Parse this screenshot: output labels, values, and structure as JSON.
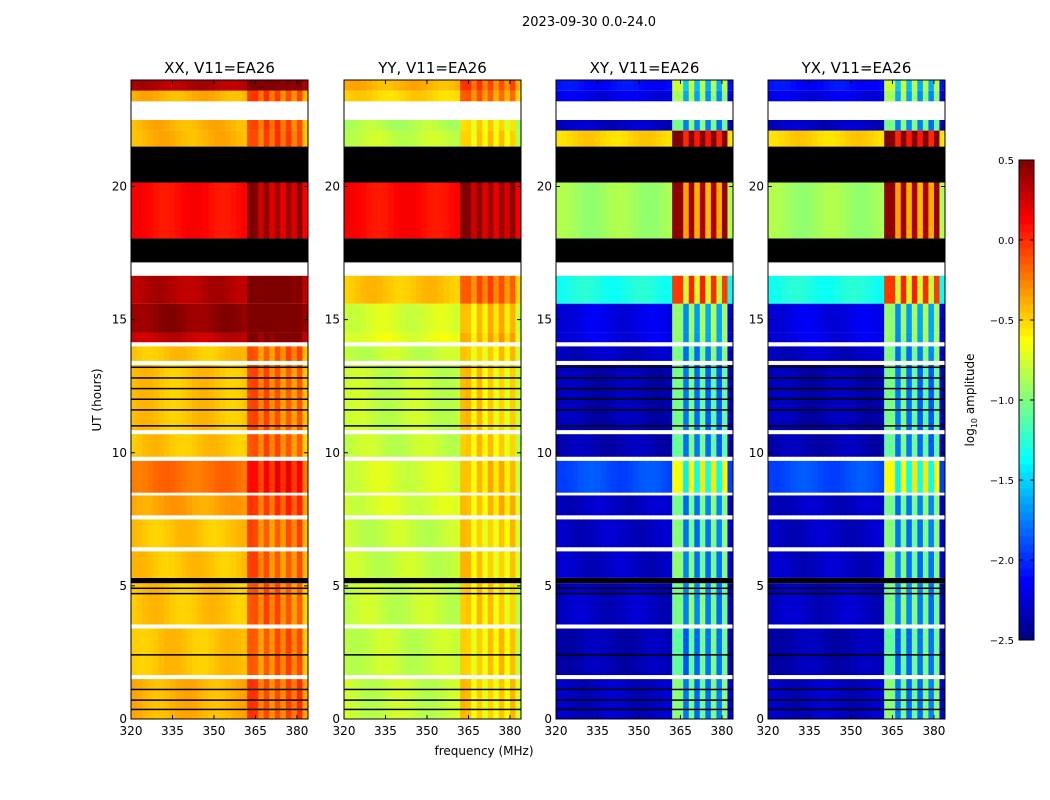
{
  "chart_data": {
    "type": "heatmap",
    "suptitle": "2023-09-30 0.0-24.0",
    "xlabel": "frequency (MHz)",
    "ylabel": "UT (hours)",
    "xlim": [
      320,
      384
    ],
    "ylim": [
      0,
      24
    ],
    "xticks": [
      320,
      335,
      350,
      365,
      380
    ],
    "yticks": [
      0,
      5,
      10,
      15,
      20
    ],
    "panels": [
      {
        "key": "XX",
        "title": "XX, V11=EA26"
      },
      {
        "key": "YY",
        "title": "YY, V11=EA26"
      },
      {
        "key": "XY",
        "title": "XY, V11=EA26"
      },
      {
        "key": "YX",
        "title": "YX, V11=EA26"
      }
    ],
    "colorbar": {
      "label": "log10 amplitude",
      "label_main": "log",
      "label_sub": "10",
      "label_rest": " amplitude",
      "colormap": "jet",
      "range": [
        -2.5,
        0.5
      ],
      "ticks": [
        0.5,
        0.0,
        -0.5,
        -1.0,
        -1.5,
        -2.0,
        -2.5
      ],
      "tick_labels": [
        "0.5",
        "0.0",
        "−0.5",
        "−1.0",
        "−1.5",
        "−2.0",
        "−2.5"
      ]
    },
    "band_enhancement": {
      "range_mhz": [
        363,
        381
      ],
      "gap_channels_mhz": [
        366.5,
        370.5,
        374.5,
        378.5
      ],
      "boost": {
        "XX": 0.35,
        "YY": 0.35,
        "XY": 1.3,
        "YX": 1.3
      }
    },
    "segments": [
      {
        "t0": 0.0,
        "t1": 1.5,
        "XX": -0.4,
        "YY": -0.8,
        "XY": -2.3,
        "YX": -2.3
      },
      {
        "t0": 1.5,
        "t1": 1.65,
        "state": "flagged"
      },
      {
        "t0": 1.65,
        "t1": 3.4,
        "XX": -0.45,
        "YY": -0.8,
        "XY": -2.35,
        "YX": -2.35
      },
      {
        "t0": 3.4,
        "t1": 3.55,
        "state": "flagged"
      },
      {
        "t0": 3.55,
        "t1": 5.1,
        "XX": -0.45,
        "YY": -0.8,
        "XY": -2.3,
        "YX": -2.3
      },
      {
        "t0": 5.1,
        "t1": 5.3,
        "state": "zero"
      },
      {
        "t0": 5.3,
        "t1": 6.3,
        "XX": -0.45,
        "YY": -0.8,
        "XY": -2.3,
        "YX": -2.3
      },
      {
        "t0": 6.3,
        "t1": 6.45,
        "state": "flagged"
      },
      {
        "t0": 6.45,
        "t1": 7.5,
        "XX": -0.45,
        "YY": -0.8,
        "XY": -2.3,
        "YX": -2.3
      },
      {
        "t0": 7.5,
        "t1": 7.65,
        "state": "flagged"
      },
      {
        "t0": 7.65,
        "t1": 8.4,
        "XX": -0.35,
        "YY": -0.75,
        "XY": -2.3,
        "YX": -2.3
      },
      {
        "t0": 8.4,
        "t1": 8.5,
        "state": "flagged"
      },
      {
        "t0": 8.5,
        "t1": 9.7,
        "XX": -0.2,
        "YY": -0.75,
        "XY": -1.9,
        "YX": -1.9
      },
      {
        "t0": 9.7,
        "t1": 9.85,
        "state": "flagged"
      },
      {
        "t0": 9.85,
        "t1": 10.7,
        "XX": -0.45,
        "YY": -0.8,
        "XY": -2.35,
        "YX": -2.35
      },
      {
        "t0": 10.7,
        "t1": 10.85,
        "state": "flagged"
      },
      {
        "t0": 10.85,
        "t1": 13.3,
        "XX": -0.45,
        "YY": -0.8,
        "XY": -2.35,
        "YX": -2.35
      },
      {
        "t0": 13.3,
        "t1": 13.45,
        "state": "flagged"
      },
      {
        "t0": 13.45,
        "t1": 14.0,
        "XX": -0.45,
        "YY": -0.8,
        "XY": -2.3,
        "YX": -2.3
      },
      {
        "t0": 14.0,
        "t1": 14.15,
        "state": "flagged"
      },
      {
        "t0": 14.15,
        "t1": 14.5,
        "XX": 0.3,
        "YY": -0.7,
        "XY": -2.2,
        "YX": -2.2
      },
      {
        "t0": 14.5,
        "t1": 15.6,
        "XX": 0.45,
        "YY": -0.75,
        "XY": -2.2,
        "YX": -2.2
      },
      {
        "t0": 15.6,
        "t1": 16.65,
        "XX": 0.35,
        "YY": -0.45,
        "XY": -1.3,
        "YX": -1.3
      },
      {
        "t0": 16.65,
        "t1": 17.15,
        "state": "flagged"
      },
      {
        "t0": 17.15,
        "t1": 18.05,
        "state": "zero"
      },
      {
        "t0": 18.05,
        "t1": 20.15,
        "XX": 0.1,
        "YY": 0.1,
        "XY": -0.9,
        "YX": -0.9
      },
      {
        "t0": 20.15,
        "t1": 21.5,
        "state": "zero"
      },
      {
        "t0": 21.5,
        "t1": 22.1,
        "XX": -0.4,
        "YY": -0.8,
        "XY": -0.5,
        "YX": -0.5
      },
      {
        "t0": 22.1,
        "t1": 22.5,
        "XX": -0.4,
        "YY": -0.85,
        "XY": -2.3,
        "YX": -2.3
      },
      {
        "t0": 22.5,
        "t1": 23.2,
        "state": "flagged"
      },
      {
        "t0": 23.2,
        "t1": 23.6,
        "XX": -0.4,
        "YY": -0.5,
        "XY": -2.2,
        "YX": -2.2
      },
      {
        "t0": 23.6,
        "t1": 24.0,
        "XX": 0.35,
        "YY": -0.4,
        "XY": -2.1,
        "YX": -2.1
      }
    ],
    "zero_rows_hours": [
      0.35,
      0.7,
      1.1,
      2.4,
      4.7,
      4.9,
      11.0,
      11.6,
      12.0,
      12.4,
      12.8,
      13.2,
      17.9,
      17.5
    ]
  }
}
